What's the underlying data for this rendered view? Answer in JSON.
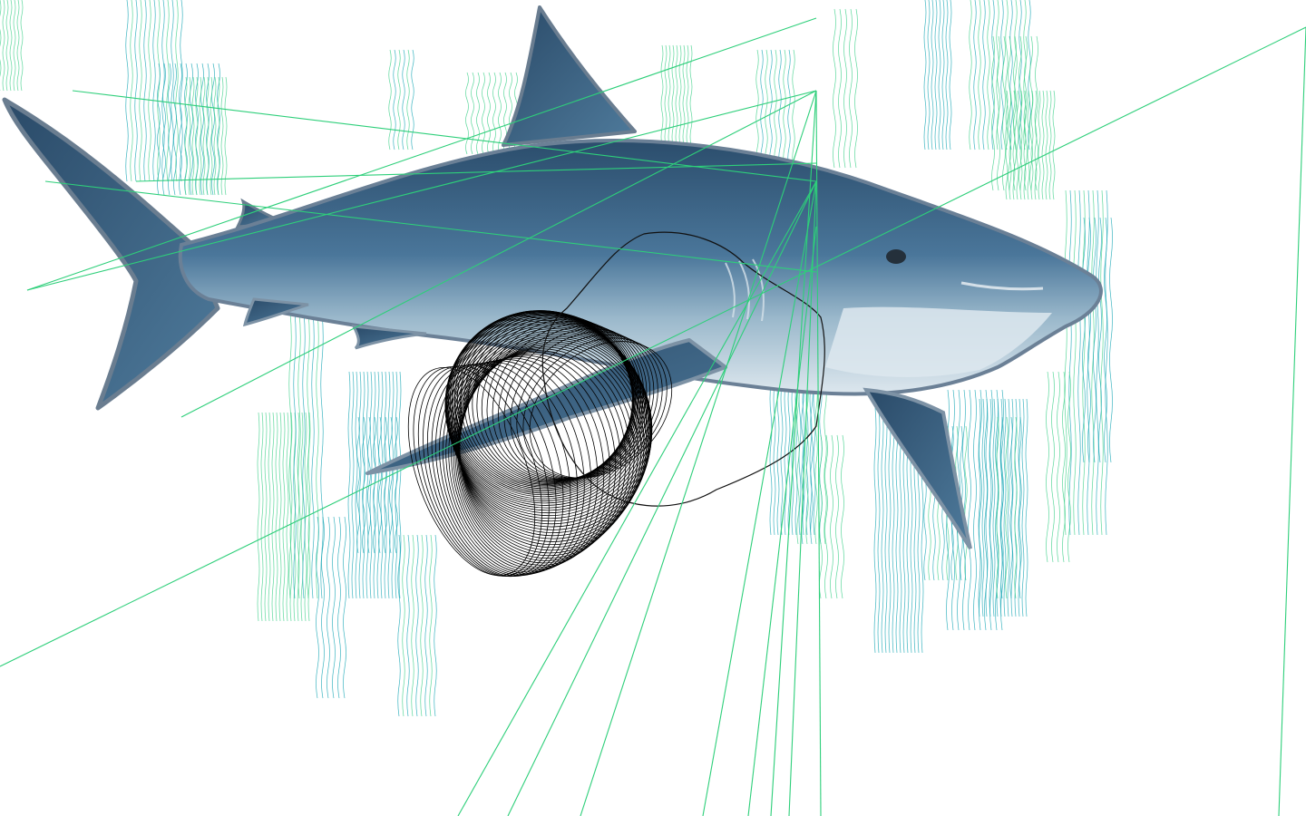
{
  "artwork": {
    "subject_icon": "shark-icon",
    "colors": {
      "background": "#ffffff",
      "shark_dark": "#2d4f6e",
      "shark_mid": "#3f6a8c",
      "shark_light": "#8fb1c6",
      "shark_belly": "#d3e0e8",
      "outline": "#5d7185",
      "ray_line": "#2ecf7a",
      "wave_teal": "#19a7b5",
      "wave_green": "#3ed08a",
      "loop_line": "#000000"
    }
  }
}
